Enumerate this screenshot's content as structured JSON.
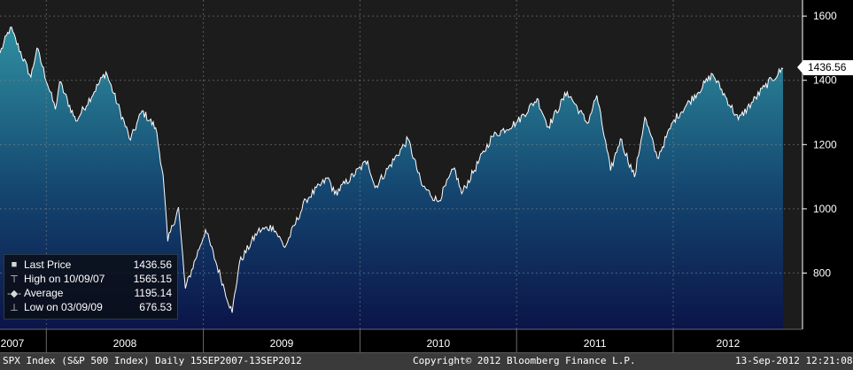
{
  "chart_data": {
    "type": "area",
    "title": "",
    "xlabel": "",
    "ylabel": "",
    "ylim": [
      625,
      1650
    ],
    "y_ticks": [
      800,
      1000,
      1200,
      1400,
      1600
    ],
    "x_ticks": [
      "2007",
      "2008",
      "2009",
      "2010",
      "2011",
      "2012"
    ],
    "x_range": [
      "2007-09-15",
      "2012-09-13"
    ],
    "grid": true,
    "legend_position": "bottom-left",
    "series": [
      {
        "name": "Last Price",
        "x": [
          "2007-09-15",
          "2007-10-09",
          "2007-11-26",
          "2007-12-10",
          "2008-01-22",
          "2008-02-01",
          "2008-03-10",
          "2008-05-19",
          "2008-07-15",
          "2008-08-11",
          "2008-09-12",
          "2008-09-29",
          "2008-10-10",
          "2008-11-04",
          "2008-11-20",
          "2009-01-06",
          "2009-03-09",
          "2009-03-26",
          "2009-05-08",
          "2009-06-12",
          "2009-07-10",
          "2009-08-28",
          "2009-10-19",
          "2009-11-03",
          "2010-01-19",
          "2010-02-05",
          "2010-04-23",
          "2010-05-25",
          "2010-07-02",
          "2010-08-09",
          "2010-08-26",
          "2010-11-05",
          "2011-01-03",
          "2011-02-18",
          "2011-03-16",
          "2011-04-29",
          "2011-06-15",
          "2011-07-07",
          "2011-08-08",
          "2011-08-31",
          "2011-10-03",
          "2011-10-27",
          "2011-11-25",
          "2012-01-03",
          "2012-04-02",
          "2012-06-01",
          "2012-08-01",
          "2012-09-13"
        ],
        "values": [
          1485,
          1565,
          1410,
          1500,
          1310,
          1395,
          1273,
          1426,
          1214,
          1305,
          1252,
          1106,
          899,
          1005,
          752,
          935,
          676.53,
          832,
          930,
          945,
          880,
          1028,
          1097,
          1046,
          1150,
          1066,
          1217,
          1074,
          1022,
          1127,
          1047,
          1225,
          1271,
          1343,
          1256,
          1364,
          1266,
          1353,
          1119,
          1218,
          1099,
          1285,
          1158,
          1277,
          1419,
          1278,
          1380,
          1436.56
        ],
        "color": "#1f7a8c"
      }
    ],
    "annotations": {
      "last_price": "1436.56"
    }
  },
  "legend": {
    "rows": [
      {
        "symbol": "■",
        "label": "Last Price",
        "value": "1436.56"
      },
      {
        "symbol": "⊤",
        "label": "High on 10/09/07",
        "value": "1565.15"
      },
      {
        "symbol": "-◆-",
        "label": "Average",
        "value": "1195.14"
      },
      {
        "symbol": "⊥",
        "label": "Low on 03/09/09",
        "value": "676.53"
      }
    ]
  },
  "footer": {
    "left": "SPX Index (S&P 500 Index)  Daily 15SEP2007-13SEP2012",
    "center": "Copyright© 2012 Bloomberg Finance L.P.",
    "right": "13-Sep-2012 12:21:08"
  },
  "colors": {
    "background": "#1c1c1c",
    "area_top": "#2f8fa0",
    "area_bottom": "#0b1448",
    "line": "#ffffff",
    "grid": "#7a7a7a"
  }
}
